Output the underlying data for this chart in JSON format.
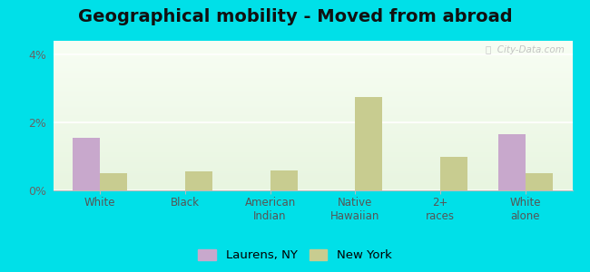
{
  "title": "Geographical mobility - Moved from abroad",
  "categories": [
    "White",
    "Black",
    "American\nIndian",
    "Native\nHawaiian",
    "2+\nraces",
    "White\nalone"
  ],
  "laurens_values": [
    1.55,
    0.0,
    0.0,
    0.0,
    0.0,
    1.65
  ],
  "ny_values": [
    0.5,
    0.55,
    0.6,
    2.75,
    1.0,
    0.5
  ],
  "laurens_color": "#c8a8cc",
  "ny_color": "#c8cc90",
  "ylim": [
    0,
    4.4
  ],
  "yticks": [
    0,
    2,
    4
  ],
  "ytick_labels": [
    "0%",
    "2%",
    "4%"
  ],
  "background_color": "#00e0e8",
  "legend_laurens": "Laurens, NY",
  "legend_ny": "New York",
  "watermark": "Ⓛ  City-Data.com",
  "bar_width": 0.32,
  "title_fontsize": 14
}
